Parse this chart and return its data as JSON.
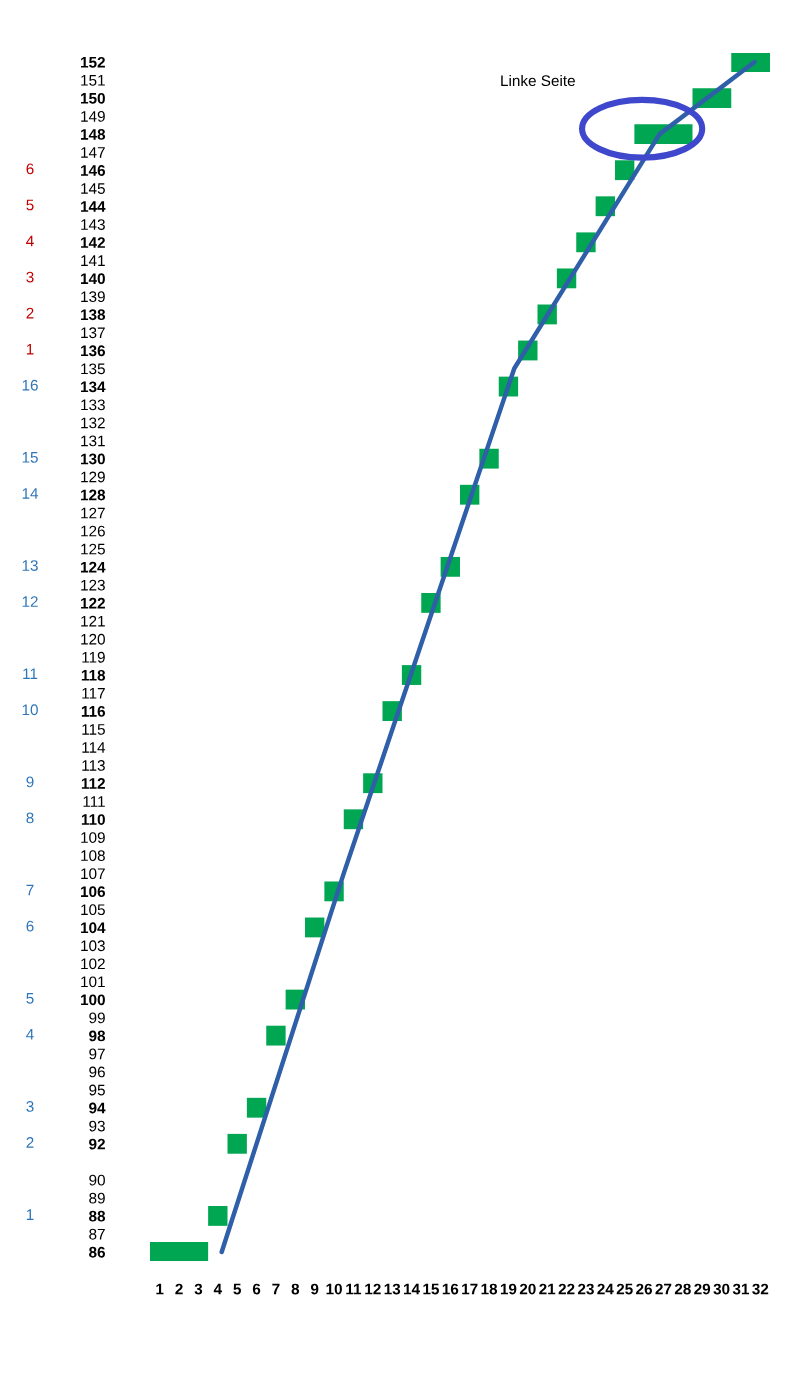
{
  "chart_data": {
    "type": "bar",
    "orientation": "horizontal",
    "xlim": [
      0.5,
      32.5
    ],
    "xticks": [
      1,
      2,
      3,
      4,
      5,
      6,
      7,
      8,
      9,
      10,
      11,
      12,
      13,
      14,
      15,
      16,
      17,
      18,
      19,
      20,
      21,
      22,
      23,
      24,
      25,
      26,
      27,
      28,
      29,
      30,
      31,
      32
    ],
    "ylim": [
      85.5,
      152.5
    ],
    "yticks": [
      86,
      87,
      88,
      89,
      90,
      92,
      93,
      94,
      95,
      96,
      97,
      98,
      99,
      100,
      101,
      102,
      103,
      104,
      105,
      106,
      107,
      108,
      109,
      110,
      111,
      112,
      113,
      114,
      115,
      116,
      117,
      118,
      119,
      120,
      121,
      122,
      123,
      124,
      125,
      126,
      127,
      128,
      129,
      130,
      131,
      132,
      133,
      134,
      135,
      136,
      137,
      138,
      139,
      140,
      141,
      142,
      143,
      144,
      145,
      146,
      147,
      148,
      149,
      150,
      151,
      152
    ],
    "grid": false,
    "series": [
      {
        "color": "#00a651",
        "x": [
          86,
          88,
          92,
          94,
          98,
          100,
          104,
          106,
          110,
          112,
          116,
          118,
          122,
          124,
          128,
          130,
          134,
          136,
          138,
          140,
          142,
          144,
          146,
          148,
          150,
          152
        ],
        "base": [
          0.5,
          3.5,
          4.5,
          5.5,
          6.5,
          7.5,
          8.5,
          9.5,
          10.5,
          11.5,
          12.5,
          13.5,
          14.5,
          15.5,
          16.5,
          17.5,
          18.5,
          19.5,
          20.5,
          21.5,
          22.5,
          23.5,
          24.5,
          25.5,
          28.5,
          30.5
        ],
        "values": [
          3,
          1,
          1,
          1,
          1,
          1,
          1,
          1,
          1,
          1,
          1,
          1,
          1,
          1,
          1,
          1,
          1,
          1,
          1,
          1,
          1,
          1,
          1,
          3,
          2,
          2
        ]
      },
      {
        "type": "line",
        "color": "#2f5fa8",
        "x": [
          86,
          107,
          135,
          148,
          152
        ],
        "values": [
          4.2,
          10.5,
          19.3,
          26.8,
          31.7
        ]
      }
    ],
    "annotations": [
      "Linke Seite",
      "1",
      "2",
      "3",
      "4",
      "5",
      "6",
      "7",
      "8",
      "9",
      "10",
      "11",
      "12",
      "13",
      "14",
      "15",
      "16",
      "1",
      "2",
      "3",
      "4",
      "5",
      "6"
    ]
  }
}
